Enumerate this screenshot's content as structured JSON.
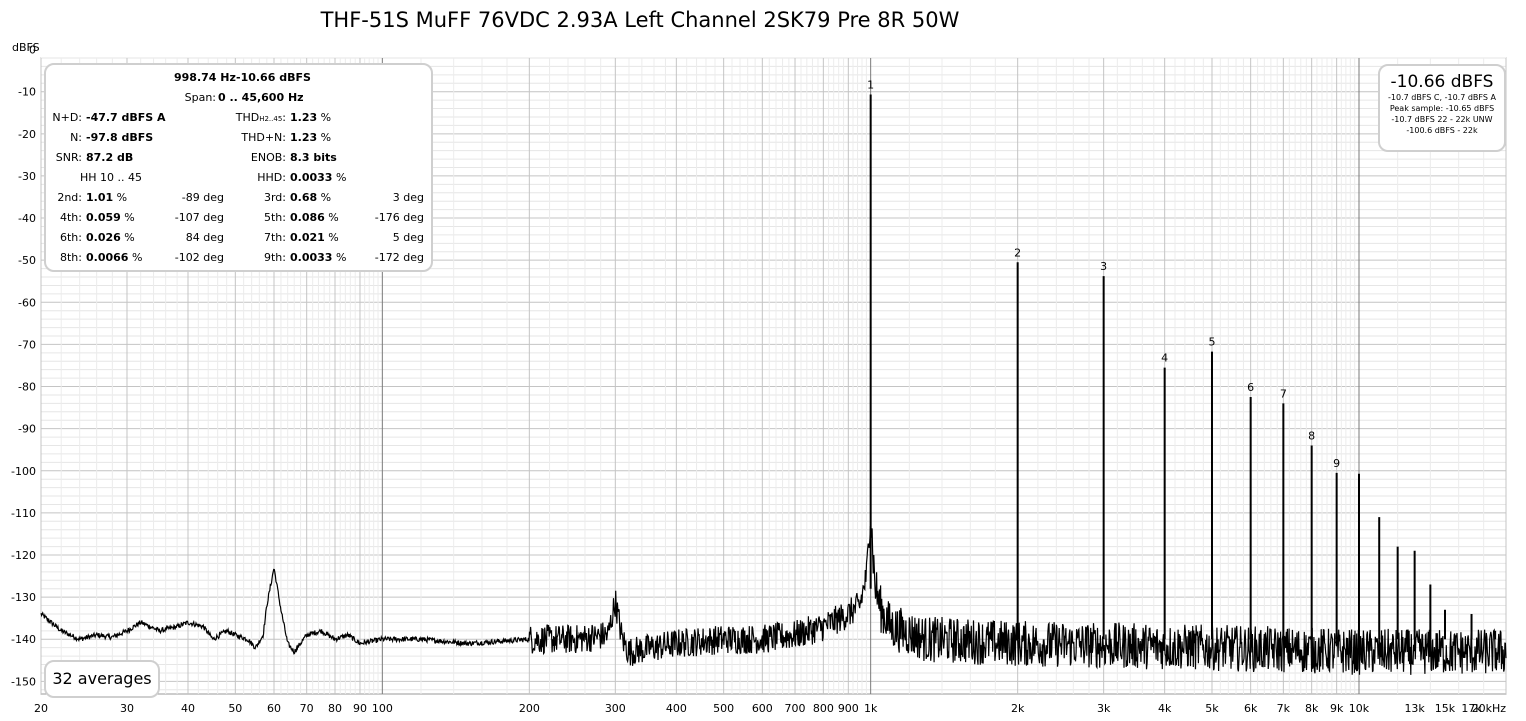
{
  "title": "THF-51S MuFF 76VDC 2.93A Left Channel 2SK79 Pre 8R 50W",
  "chart_data": {
    "type": "line",
    "title": "THF-51S MuFF 76VDC 2.93A Left Channel 2SK79 Pre 8R 50W",
    "ylabel": "dBFS",
    "xlabel": "",
    "x_scale": "log",
    "xlim": [
      20,
      20000
    ],
    "ylim": [
      -153,
      -2
    ],
    "grid": true,
    "x_ticks": [
      {
        "v": 20,
        "l": "20"
      },
      {
        "v": 30,
        "l": "30"
      },
      {
        "v": 40,
        "l": "40"
      },
      {
        "v": 50,
        "l": "50"
      },
      {
        "v": 60,
        "l": "60"
      },
      {
        "v": 70,
        "l": "70"
      },
      {
        "v": 80,
        "l": "80"
      },
      {
        "v": 90,
        "l": "90"
      },
      {
        "v": 100,
        "l": "100"
      },
      {
        "v": 200,
        "l": "200"
      },
      {
        "v": 300,
        "l": "300"
      },
      {
        "v": 400,
        "l": "400"
      },
      {
        "v": 500,
        "l": "500"
      },
      {
        "v": 600,
        "l": "600"
      },
      {
        "v": 700,
        "l": "700"
      },
      {
        "v": 800,
        "l": "800"
      },
      {
        "v": 900,
        "l": "900"
      },
      {
        "v": 1000,
        "l": "1k"
      },
      {
        "v": 2000,
        "l": "2k"
      },
      {
        "v": 3000,
        "l": "3k"
      },
      {
        "v": 4000,
        "l": "4k"
      },
      {
        "v": 5000,
        "l": "5k"
      },
      {
        "v": 6000,
        "l": "6k"
      },
      {
        "v": 7000,
        "l": "7k"
      },
      {
        "v": 8000,
        "l": "8k"
      },
      {
        "v": 9000,
        "l": "9k"
      },
      {
        "v": 10000,
        "l": "10k"
      },
      {
        "v": 13000,
        "l": "13k"
      },
      {
        "v": 15000,
        "l": "15k"
      },
      {
        "v": 17000,
        "l": "17k"
      },
      {
        "v": 20000,
        "l": "20kHz"
      }
    ],
    "y_ticks": [
      0,
      -10,
      -20,
      -30,
      -40,
      -50,
      -60,
      -70,
      -80,
      -90,
      -100,
      -110,
      -120,
      -130,
      -140,
      -150
    ],
    "noise_floor_points": [
      [
        20,
        -134
      ],
      [
        22,
        -138
      ],
      [
        24,
        -140
      ],
      [
        26,
        -139
      ],
      [
        28,
        -139.5
      ],
      [
        30,
        -138
      ],
      [
        32,
        -136
      ],
      [
        35,
        -138
      ],
      [
        38,
        -137
      ],
      [
        40,
        -136
      ],
      [
        43,
        -137
      ],
      [
        45,
        -140
      ],
      [
        48,
        -138
      ],
      [
        50,
        -139
      ],
      [
        53,
        -140
      ],
      [
        55,
        -142
      ],
      [
        57,
        -139
      ],
      [
        58,
        -132
      ],
      [
        60,
        -123
      ],
      [
        62,
        -133
      ],
      [
        64,
        -141
      ],
      [
        66,
        -143
      ],
      [
        70,
        -139
      ],
      [
        75,
        -138
      ],
      [
        80,
        -140
      ],
      [
        85,
        -139
      ],
      [
        90,
        -141
      ],
      [
        100,
        -140
      ],
      [
        120,
        -140
      ],
      [
        150,
        -141
      ],
      [
        200,
        -140
      ],
      [
        250,
        -140
      ],
      [
        290,
        -139
      ],
      [
        300,
        -131
      ],
      [
        310,
        -140
      ],
      [
        320,
        -143
      ],
      [
        400,
        -141
      ],
      [
        500,
        -140
      ],
      [
        600,
        -140
      ],
      [
        700,
        -139
      ],
      [
        800,
        -137
      ],
      [
        900,
        -134
      ],
      [
        950,
        -132
      ],
      [
        980,
        -125
      ],
      [
        1000,
        -110
      ],
      [
        1020,
        -127
      ],
      [
        1050,
        -133
      ],
      [
        1100,
        -137
      ],
      [
        1300,
        -140
      ],
      [
        2000,
        -141
      ],
      [
        5000,
        -142
      ],
      [
        10000,
        -143
      ],
      [
        20000,
        -143
      ]
    ],
    "peaks": [
      {
        "label": "1",
        "freq": 1000,
        "level": -10.66
      },
      {
        "label": "2",
        "freq": 2000,
        "level": -50.5
      },
      {
        "label": "3",
        "freq": 3000,
        "level": -53.8
      },
      {
        "label": "4",
        "freq": 4000,
        "level": -75.5
      },
      {
        "label": "5",
        "freq": 5000,
        "level": -71.7
      },
      {
        "label": "6",
        "freq": 6000,
        "level": -82.5
      },
      {
        "label": "7",
        "freq": 7000,
        "level": -84
      },
      {
        "label": "8",
        "freq": 8000,
        "level": -94
      },
      {
        "label": "9",
        "freq": 9000,
        "level": -100.5
      },
      {
        "label": "",
        "freq": 10000,
        "level": -100.7
      },
      {
        "label": "",
        "freq": 11000,
        "level": -111
      },
      {
        "label": "",
        "freq": 12000,
        "level": -118
      },
      {
        "label": "",
        "freq": 13000,
        "level": -119
      },
      {
        "label": "",
        "freq": 14000,
        "level": -127
      },
      {
        "label": "",
        "freq": 15000,
        "level": -133
      },
      {
        "label": "",
        "freq": 17000,
        "level": -134
      },
      {
        "label": "",
        "freq": 19000,
        "level": -138
      }
    ]
  },
  "stats": {
    "header_freq": "998.74 Hz",
    "header_level": "-10.66 dBFS",
    "span_label": "Span:",
    "span_value": "0 .. 45,600 Hz",
    "nd_label": "N+D:",
    "nd_value": "-47.7 dBFS A",
    "thd_label_main": "THD",
    "thd_label_sub": "H2..45",
    "thd_label_end": ":",
    "thd_value": "1.23",
    "n_label": "N:",
    "n_value": "-97.8 dBFS",
    "thdn_label": "THD+N:",
    "thdn_value": "1.23",
    "snr_label": "SNR:",
    "snr_value": "87.2 dB",
    "enob_label": "ENOB:",
    "enob_value": "8.3 bits",
    "hh_label": "HH 10 .. 45",
    "hhd_label": "HHD:",
    "hhd_value": "0.0033",
    "pct": "%",
    "harmonics": [
      {
        "a_label": "2nd:",
        "a_value": "1.01",
        "a_phase": "-89 deg",
        "b_label": "3rd:",
        "b_value": "0.68",
        "b_phase": "3 deg"
      },
      {
        "a_label": "4th:",
        "a_value": "0.059",
        "a_phase": "-107 deg",
        "b_label": "5th:",
        "b_value": "0.086",
        "b_phase": "-176 deg"
      },
      {
        "a_label": "6th:",
        "a_value": "0.026",
        "a_phase": "84 deg",
        "b_label": "7th:",
        "b_value": "0.021",
        "b_phase": "5 deg"
      },
      {
        "a_label": "8th:",
        "a_value": "0.0066",
        "a_phase": "-102 deg",
        "b_label": "9th:",
        "b_value": "0.0033",
        "b_phase": "-172 deg"
      }
    ]
  },
  "peak_box": {
    "big": "-10.66 dBFS",
    "line1": "-10.7 dBFS C, -10.7 dBFS A",
    "line2": "Peak sample: -10.65 dBFS",
    "line3": "-10.7 dBFS 22 - 22k UNW",
    "line4": "-100.6 dBFS - 22k"
  },
  "averages": "32 averages"
}
